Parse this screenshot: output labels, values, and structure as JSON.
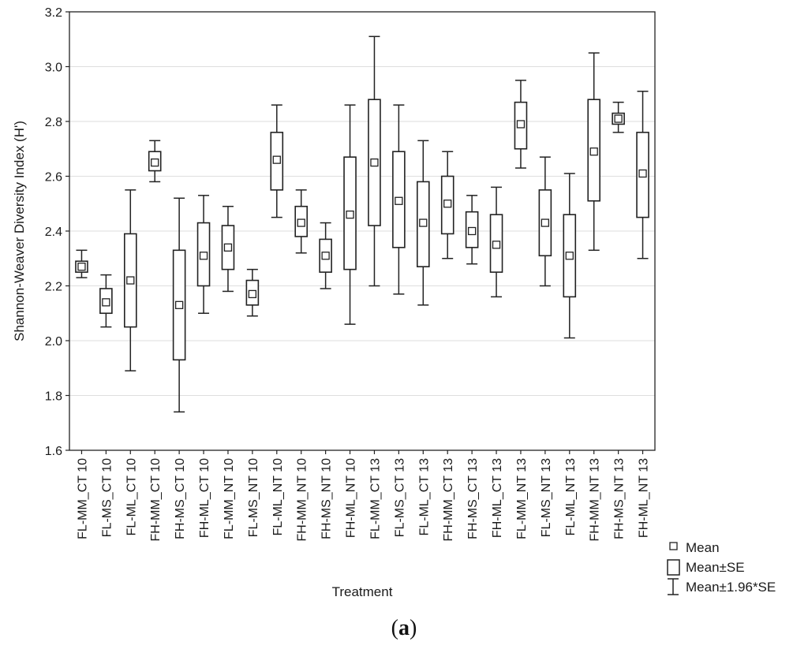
{
  "chart_data": {
    "type": "box",
    "ylabel": "Shannon-Weaver Diversity Index (H')",
    "xlabel": "Treatment",
    "ylim": [
      1.6,
      3.2
    ],
    "y_ticks": [
      "1.6",
      "1.8",
      "2.0",
      "2.2",
      "2.4",
      "2.6",
      "2.8",
      "3.0",
      "3.2"
    ],
    "grid": "horizontal",
    "legend_position": "bottom-right, outside plot",
    "legend": [
      {
        "symbol": "small-square",
        "label": "Mean"
      },
      {
        "symbol": "box",
        "label": "Mean±SE"
      },
      {
        "symbol": "whisker",
        "label": "Mean±1.96*SE"
      }
    ],
    "categories": [
      "FL-MM_CT 10",
      "FL-MS_CT 10",
      "FL-ML_CT 10",
      "FH-MM_CT 10",
      "FH-MS_CT 10",
      "FH-ML_CT 10",
      "FL-MM_NT 10",
      "FL-MS_NT 10",
      "FL-ML_NT 10",
      "FH-MM_NT 10",
      "FH-MS_NT 10",
      "FH-ML_NT 10",
      "FL-MM_CT 13",
      "FL-MS_CT 13",
      "FL-ML_CT 13",
      "FH-MM_CT 13",
      "FH-MS_CT 13",
      "FH-ML_CT 13",
      "FL-MM_NT 13",
      "FL-MS_NT 13",
      "FL-ML_NT 13",
      "FH-MM_NT 13",
      "FH-MS_NT 13",
      "FH-ML_NT 13"
    ],
    "mean": [
      2.27,
      2.14,
      2.22,
      2.65,
      2.13,
      2.31,
      2.34,
      2.17,
      2.66,
      2.43,
      2.31,
      2.46,
      2.65,
      2.51,
      2.43,
      2.5,
      2.4,
      2.35,
      2.79,
      2.43,
      2.31,
      2.69,
      2.81,
      2.61
    ],
    "se_low": [
      2.25,
      2.1,
      2.05,
      2.62,
      1.93,
      2.2,
      2.26,
      2.13,
      2.55,
      2.38,
      2.25,
      2.26,
      2.42,
      2.34,
      2.27,
      2.39,
      2.34,
      2.25,
      2.7,
      2.31,
      2.16,
      2.51,
      2.79,
      2.45
    ],
    "se_high": [
      2.29,
      2.19,
      2.39,
      2.69,
      2.33,
      2.43,
      2.42,
      2.22,
      2.76,
      2.49,
      2.37,
      2.67,
      2.88,
      2.69,
      2.58,
      2.6,
      2.47,
      2.46,
      2.87,
      2.55,
      2.46,
      2.88,
      2.83,
      2.76
    ],
    "ci_low": [
      2.23,
      2.05,
      1.89,
      2.58,
      1.74,
      2.1,
      2.18,
      2.09,
      2.45,
      2.32,
      2.19,
      2.06,
      2.2,
      2.17,
      2.13,
      2.3,
      2.28,
      2.16,
      2.63,
      2.2,
      2.01,
      2.33,
      2.76,
      2.3
    ],
    "ci_high": [
      2.33,
      2.24,
      2.55,
      2.73,
      2.52,
      2.53,
      2.49,
      2.26,
      2.86,
      2.55,
      2.43,
      2.86,
      3.11,
      2.86,
      2.73,
      2.69,
      2.53,
      2.56,
      2.95,
      2.67,
      2.61,
      3.05,
      2.87,
      2.91
    ]
  },
  "legend_labels": {
    "mean": "Mean",
    "se": "Mean±SE",
    "ci": "Mean±1.96*SE"
  },
  "caption": "(a)",
  "caption_letter": "a"
}
